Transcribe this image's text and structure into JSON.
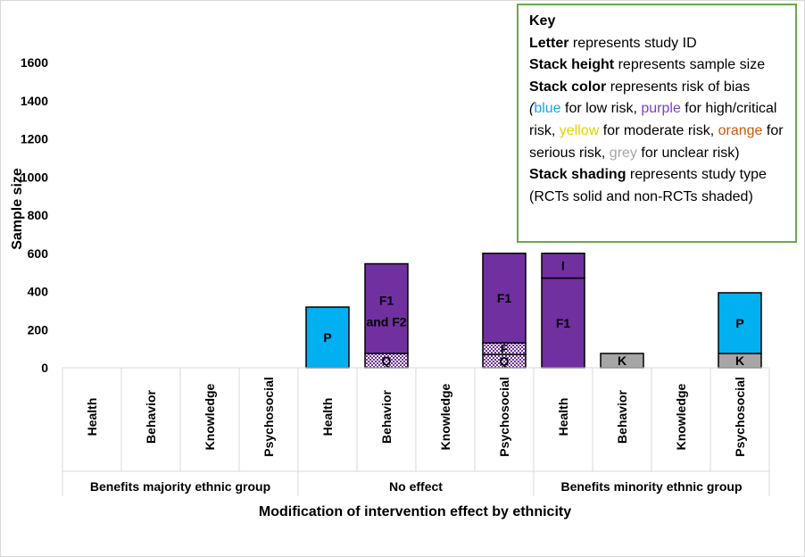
{
  "chart_data": {
    "type": "bar",
    "stacked": true,
    "ylabel": "Sample size",
    "xlabel": "Modification of intervention effect by ethnicity",
    "ylim": [
      0,
      1600
    ],
    "yticks": [
      0,
      200,
      400,
      600,
      800,
      1000,
      1200,
      1400,
      1600
    ],
    "grid": false,
    "groups": [
      {
        "name": "Benefits majority ethnic group",
        "categories": [
          "Health",
          "Behavior",
          "Knowledge",
          "Psychosocial"
        ]
      },
      {
        "name": "No effect",
        "categories": [
          "Health",
          "Behavior",
          "Knowledge",
          "Psychosocial"
        ]
      },
      {
        "name": "Benefits minority ethnic group",
        "categories": [
          "Health",
          "Behavior",
          "Knowledge",
          "Psychosocial"
        ]
      }
    ],
    "stacks": [
      {
        "group": 1,
        "category": 0,
        "segments": [
          {
            "label": "P",
            "value": 318,
            "color": "blue",
            "study_type": "RCT"
          }
        ]
      },
      {
        "group": 1,
        "category": 1,
        "segments": [
          {
            "label": "Q",
            "value": 75,
            "color": "purple",
            "study_type": "non-RCT"
          },
          {
            "label": "F1 and F2",
            "value": 470,
            "color": "purple",
            "study_type": "RCT"
          }
        ]
      },
      {
        "group": 1,
        "category": 3,
        "segments": [
          {
            "label": "Q",
            "value": 70,
            "color": "purple",
            "study_type": "non-RCT"
          },
          {
            "label": "F",
            "value": 60,
            "color": "purple",
            "study_type": "non-RCT"
          },
          {
            "label": "F1",
            "value": 470,
            "color": "purple",
            "study_type": "RCT"
          }
        ]
      },
      {
        "group": 2,
        "category": 0,
        "segments": [
          {
            "label": "F1",
            "value": 470,
            "color": "purple",
            "study_type": "RCT"
          },
          {
            "label": "I",
            "value": 130,
            "color": "purple",
            "study_type": "RCT"
          }
        ]
      },
      {
        "group": 2,
        "category": 1,
        "segments": [
          {
            "label": "K",
            "value": 75,
            "color": "grey",
            "study_type": "RCT"
          }
        ]
      },
      {
        "group": 2,
        "category": 3,
        "segments": [
          {
            "label": "K",
            "value": 75,
            "color": "grey",
            "study_type": "RCT"
          },
          {
            "label": "P",
            "value": 318,
            "color": "blue",
            "study_type": "RCT"
          }
        ]
      }
    ],
    "colors": {
      "blue": "#00b0f0",
      "purple": "#7030a0",
      "grey": "#a6a6a6",
      "yellow": "#ffff00",
      "orange": "#c65911"
    }
  },
  "key": {
    "title": "Key",
    "letter_bold": "Letter",
    "letter_rest": " represents study ID",
    "height_bold": "Stack height",
    "height_rest": " represents sample size",
    "color_bold": "Stack color",
    "color_rest": " represents risk of bias",
    "paren_open": "(",
    "blue": "blue",
    "t_low": " for low risk, ",
    "purple": "purple",
    "t_high": " for high/critical risk, ",
    "yellow": "yellow",
    "t_mod": " for moderate risk, ",
    "orange": "orange",
    "t_ser": " for serious risk, ",
    "grey": "grey",
    "t_unc": " for unclear risk)",
    "shading_bold": "Stack shading",
    "shading_rest": " represents study type (RCTs solid and non-RCTs shaded)"
  }
}
